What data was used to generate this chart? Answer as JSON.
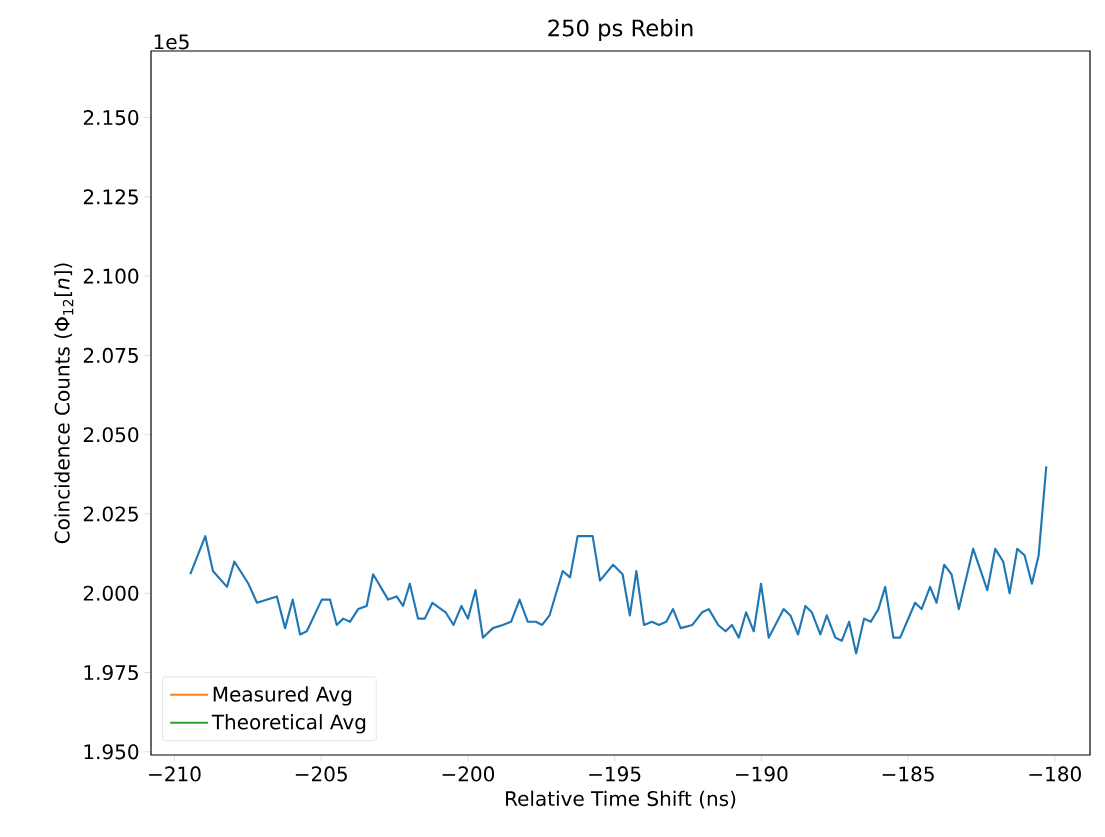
{
  "chart_data": {
    "type": "line",
    "title": "250 ps Rebin",
    "xlabel": "Relative Time Shift (ns)",
    "ylabel": "Coincidence Counts (Φ$_{12}$[*n*])",
    "annotations": [
      "1e5"
    ],
    "xlim": [
      -210.8,
      -178.8
    ],
    "ylim": [
      1.949,
      2.171
    ],
    "xticks": [
      {
        "value": -210,
        "label": "−210"
      },
      {
        "value": -205,
        "label": "−205"
      },
      {
        "value": -200,
        "label": "−200"
      },
      {
        "value": -195,
        "label": "−195"
      },
      {
        "value": -190,
        "label": "−190"
      },
      {
        "value": -185,
        "label": "−185"
      },
      {
        "value": -180,
        "label": "−180"
      }
    ],
    "yticks": [
      {
        "value": 1.95,
        "label": "1.950"
      },
      {
        "value": 1.975,
        "label": "1.975"
      },
      {
        "value": 2.0,
        "label": "2.000"
      },
      {
        "value": 2.025,
        "label": "2.025"
      },
      {
        "value": 2.05,
        "label": "2.050"
      },
      {
        "value": 2.075,
        "label": "2.075"
      },
      {
        "value": 2.1,
        "label": "2.100"
      },
      {
        "value": 2.125,
        "label": "2.125"
      },
      {
        "value": 2.15,
        "label": "2.150"
      }
    ],
    "grid": false,
    "legend": "bottom left",
    "marker": "none",
    "line_style": "solid",
    "series": [
      {
        "color": "#1f77b4",
        "x": [
          -209.46,
          -208.95,
          -208.69,
          -208.21,
          -207.96,
          -207.48,
          -207.19,
          -206.51,
          -206.23,
          -205.97,
          -205.72,
          -205.49,
          -204.98,
          -204.7,
          -204.47,
          -204.25,
          -204.02,
          -203.74,
          -203.45,
          -203.23,
          -202.72,
          -202.43,
          -202.21,
          -201.98,
          -201.7,
          -201.47,
          -201.21,
          -200.76,
          -200.49,
          -200.22,
          -200.0,
          -199.74,
          -199.49,
          -199.15,
          -198.81,
          -198.53,
          -198.24,
          -197.96,
          -197.68,
          -197.47,
          -197.22,
          -196.77,
          -196.52,
          -196.26,
          -195.75,
          -195.5,
          -195.05,
          -194.73,
          -194.48,
          -194.26,
          -194.0,
          -193.73,
          -193.49,
          -193.24,
          -193.01,
          -192.75,
          -192.35,
          -192.02,
          -191.79,
          -191.47,
          -191.22,
          -191.0,
          -190.77,
          -190.52,
          -190.26,
          -190.01,
          -189.75,
          -189.24,
          -189.01,
          -188.75,
          -188.5,
          -188.28,
          -187.99,
          -187.77,
          -187.48,
          -187.26,
          -187.01,
          -186.77,
          -186.5,
          -186.27,
          -186.01,
          -185.78,
          -185.5,
          -185.27,
          -184.76,
          -184.54,
          -184.25,
          -184.03,
          -183.77,
          -183.52,
          -183.27,
          -182.78,
          -182.3,
          -182.03,
          -181.76,
          -181.54,
          -181.28,
          -181.03,
          -180.78,
          -180.55,
          -180.29
        ],
        "values": [
          2.006,
          2.018,
          2.007,
          2.002,
          2.01,
          2.003,
          1.997,
          1.999,
          1.989,
          1.998,
          1.987,
          1.988,
          1.998,
          1.998,
          1.99,
          1.992,
          1.991,
          1.995,
          1.996,
          2.006,
          1.998,
          1.999,
          1.996,
          2.003,
          1.992,
          1.992,
          1.997,
          1.994,
          1.99,
          1.996,
          1.992,
          2.001,
          1.986,
          1.989,
          1.99,
          1.991,
          1.998,
          1.991,
          1.991,
          1.99,
          1.993,
          2.007,
          2.005,
          2.018,
          2.018,
          2.004,
          2.009,
          2.006,
          1.993,
          2.007,
          1.99,
          1.991,
          1.99,
          1.991,
          1.995,
          1.989,
          1.99,
          1.994,
          1.995,
          1.99,
          1.988,
          1.99,
          1.986,
          1.994,
          1.988,
          2.003,
          1.986,
          1.995,
          1.993,
          1.987,
          1.996,
          1.994,
          1.987,
          1.993,
          1.986,
          1.985,
          1.991,
          1.981,
          1.992,
          1.991,
          1.995,
          2.002,
          1.986,
          1.986,
          1.997,
          1.995,
          2.002,
          1.997,
          2.009,
          2.006,
          1.995,
          2.014,
          2.001,
          2.014,
          2.01,
          2.0,
          2.014,
          2.012,
          2.003,
          2.012,
          2.04
        ]
      },
      {
        "name": "Measured Avg",
        "color": "#ff7f0e"
      },
      {
        "name": "Theoretical Avg",
        "color": "#2ca02c"
      }
    ]
  }
}
